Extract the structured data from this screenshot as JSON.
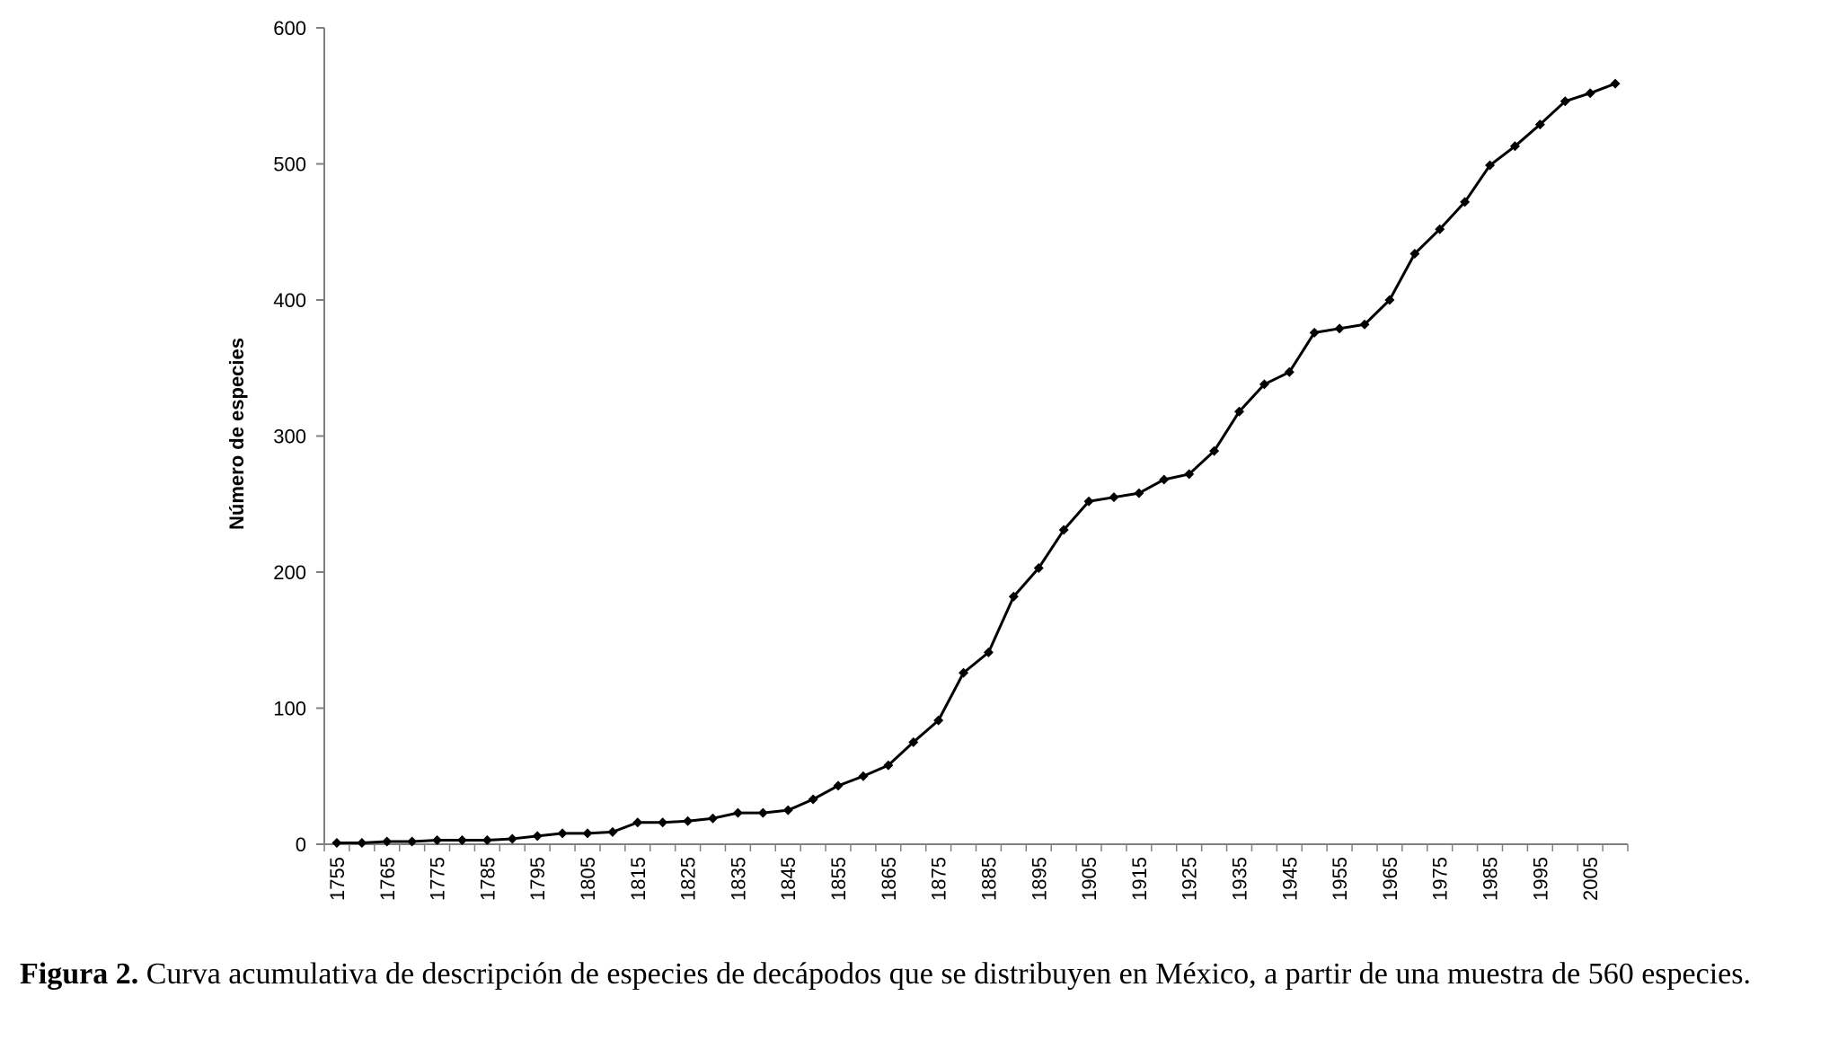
{
  "chart_data": {
    "type": "line",
    "title": "",
    "xlabel": "",
    "ylabel": "Número de especies",
    "ylim": [
      0,
      600
    ],
    "yticks": [
      "0",
      "100",
      "200",
      "300",
      "400",
      "500",
      "600"
    ],
    "xticks": [
      "1755",
      "1765",
      "1775",
      "1785",
      "1795",
      "1805",
      "1815",
      "1825",
      "1835",
      "1845",
      "1855",
      "1865",
      "1875",
      "1885",
      "1895",
      "1905",
      "1915",
      "1925",
      "1935",
      "1945",
      "1955",
      "1965",
      "1975",
      "1985",
      "1995",
      "2005"
    ],
    "grid": false,
    "legend": "none",
    "marker": "diamond",
    "line_color": "#000000",
    "series": [
      {
        "x": [
          1755,
          1760,
          1765,
          1770,
          1775,
          1780,
          1785,
          1790,
          1795,
          1800,
          1805,
          1810,
          1815,
          1820,
          1825,
          1830,
          1835,
          1840,
          1845,
          1850,
          1855,
          1860,
          1865,
          1870,
          1875,
          1880,
          1885,
          1890,
          1895,
          1900,
          1905,
          1910,
          1915,
          1920,
          1925,
          1930,
          1935,
          1940,
          1945,
          1950,
          1955,
          1960,
          1965,
          1970,
          1975,
          1980,
          1985,
          1990,
          1995,
          2000,
          2005,
          2010
        ],
        "y": [
          1,
          1,
          2,
          2,
          3,
          3,
          3,
          4,
          6,
          8,
          8,
          9,
          16,
          16,
          17,
          19,
          23,
          23,
          25,
          33,
          43,
          50,
          58,
          75,
          91,
          126,
          141,
          182,
          203,
          231,
          252,
          255,
          258,
          268,
          272,
          289,
          318,
          338,
          347,
          376,
          379,
          382,
          400,
          434,
          452,
          472,
          499,
          513,
          529,
          546,
          552,
          559
        ]
      }
    ]
  },
  "caption": {
    "label": "Figura 2.",
    "text": " Curva acumulativa de descripción de especies de decápodos que se distribuyen en México, a partir de una muestra de 560 especies."
  }
}
